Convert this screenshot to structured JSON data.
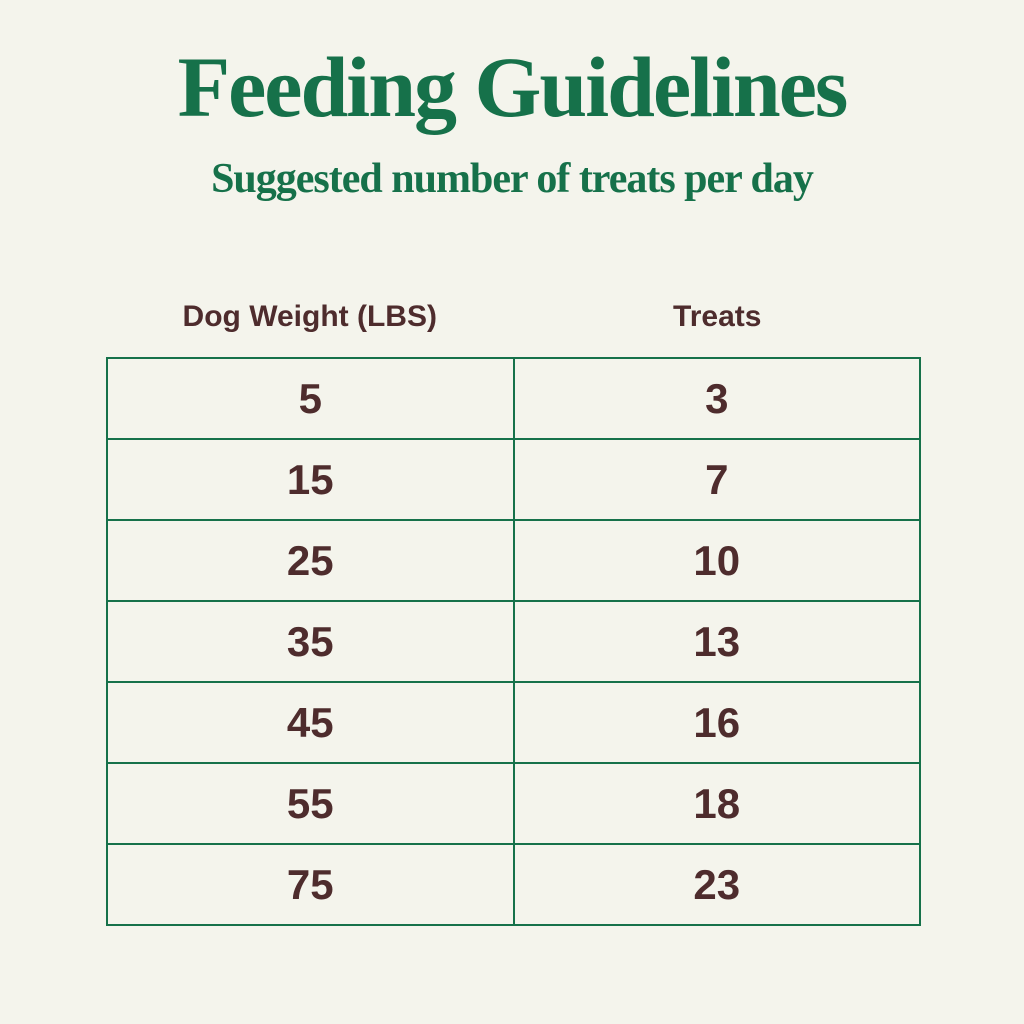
{
  "colors": {
    "green": "#16714a",
    "maroon": "#4e2c2d",
    "bg": "#f4f4ec"
  },
  "chart_data": {
    "type": "table",
    "title": "Feeding Guidelines",
    "subtitle": "Suggested number of treats per day",
    "columns": [
      "Dog Weight (LBS)",
      "Treats"
    ],
    "rows": [
      [
        5,
        3
      ],
      [
        15,
        7
      ],
      [
        25,
        10
      ],
      [
        35,
        13
      ],
      [
        45,
        16
      ],
      [
        55,
        18
      ],
      [
        75,
        23
      ]
    ],
    "notes": "Two-column lookup table: dog weight in pounds vs suggested number of treats per day. Green grid lines, headers outside the bordered grid."
  }
}
